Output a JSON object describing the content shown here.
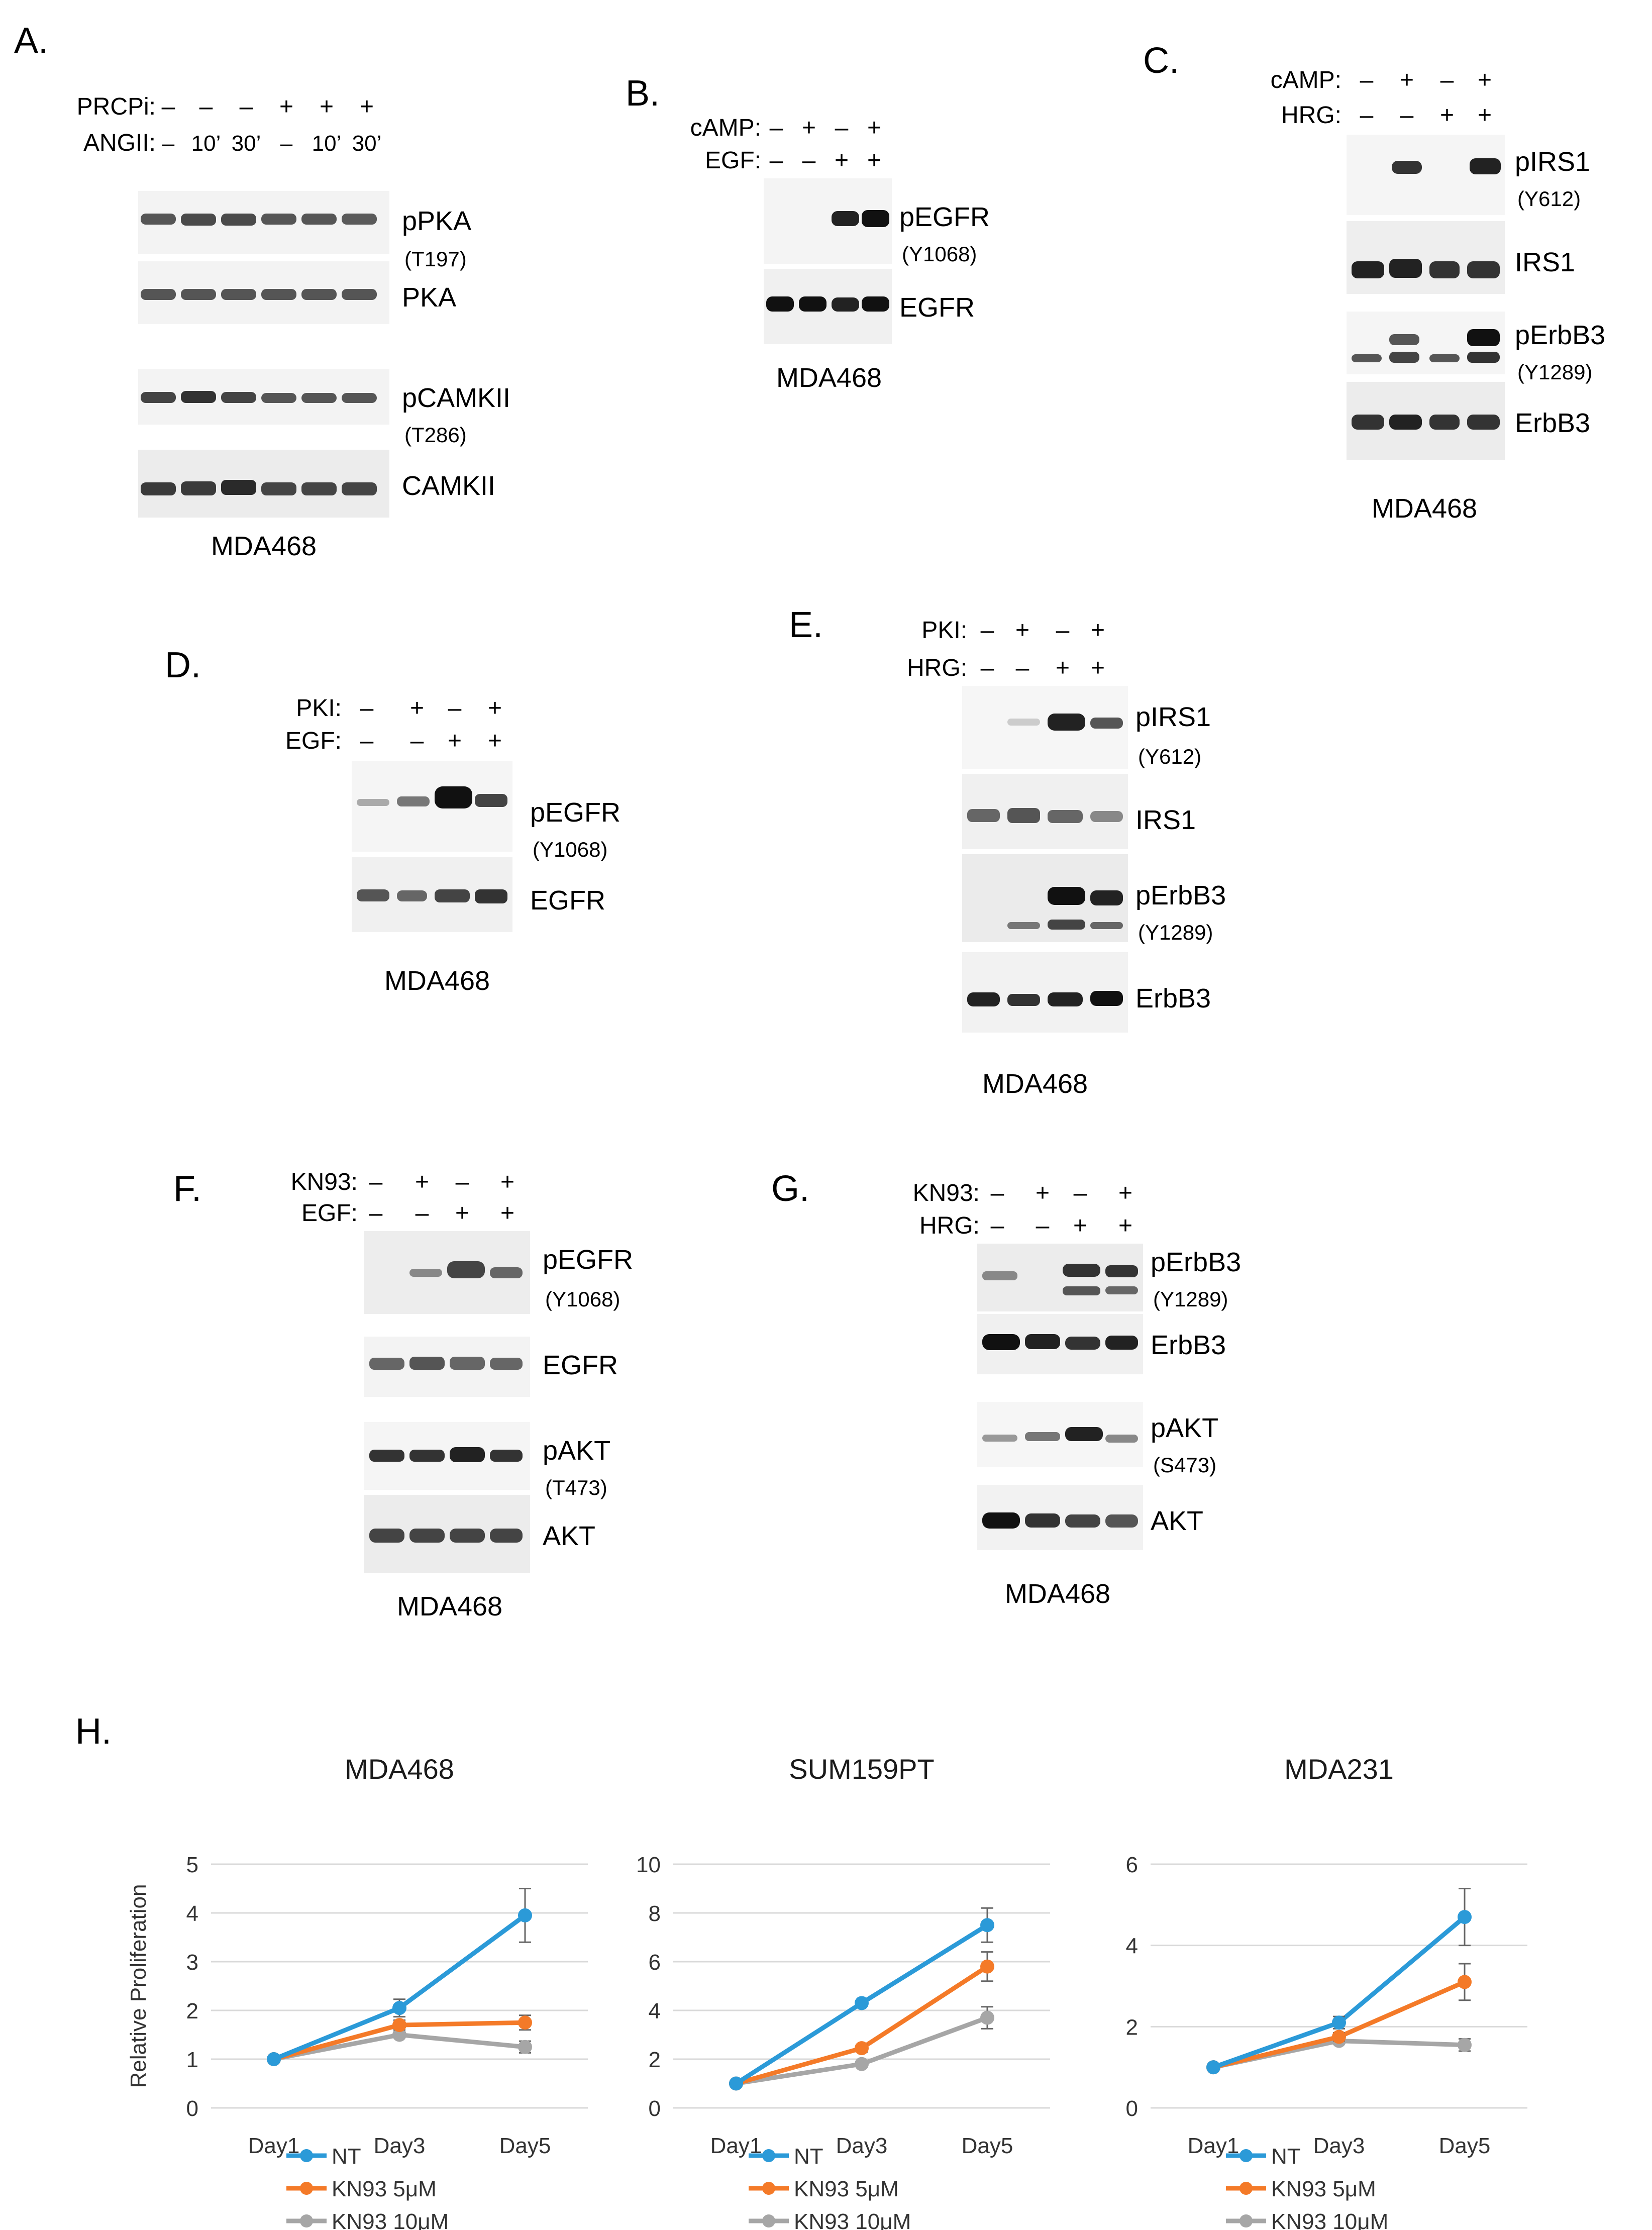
{
  "panel_letters": [
    "A.",
    "B.",
    "C.",
    "D.",
    "E.",
    "F.",
    "G.",
    "H."
  ],
  "panel_a": {
    "conditions": [
      {
        "label": "PRCPi:",
        "values": [
          "–",
          "–",
          "–",
          "+",
          "+",
          "+"
        ]
      },
      {
        "label": "ANGII:",
        "values": [
          "–",
          "10’",
          "30’",
          "–",
          "10’",
          "30’"
        ]
      }
    ],
    "blots": [
      {
        "label": "pPKA",
        "site": "(T197)"
      },
      {
        "label": "PKA",
        "site": ""
      },
      {
        "label": "pCAMKII",
        "site": "(T286)"
      },
      {
        "label": "CAMKII",
        "site": ""
      }
    ],
    "cell_line": "MDA468"
  },
  "panel_b": {
    "conditions": [
      {
        "label": "cAMP:",
        "values": [
          "–",
          "+",
          "–",
          "+"
        ]
      },
      {
        "label": "EGF:",
        "values": [
          "–",
          "–",
          "+",
          "+"
        ]
      }
    ],
    "blots": [
      {
        "label": "pEGFR",
        "site": "(Y1068)"
      },
      {
        "label": "EGFR",
        "site": ""
      }
    ],
    "cell_line": "MDA468"
  },
  "panel_c": {
    "conditions": [
      {
        "label": "cAMP:",
        "values": [
          "–",
          "+",
          "–",
          "+"
        ]
      },
      {
        "label": "HRG:",
        "values": [
          "–",
          "–",
          "+",
          "+"
        ]
      }
    ],
    "blots": [
      {
        "label": "pIRS1",
        "site": "(Y612)"
      },
      {
        "label": "IRS1",
        "site": ""
      },
      {
        "label": "pErbB3",
        "site": "(Y1289)"
      },
      {
        "label": "ErbB3",
        "site": ""
      }
    ],
    "cell_line": "MDA468"
  },
  "panel_d": {
    "conditions": [
      {
        "label": "PKI:",
        "values": [
          "–",
          "+",
          "–",
          "+"
        ]
      },
      {
        "label": "EGF:",
        "values": [
          "–",
          "–",
          "+",
          "+"
        ]
      }
    ],
    "blots": [
      {
        "label": "pEGFR",
        "site": "(Y1068)"
      },
      {
        "label": "EGFR",
        "site": ""
      }
    ],
    "cell_line": "MDA468"
  },
  "panel_e": {
    "conditions": [
      {
        "label": "PKI:",
        "values": [
          "–",
          "+",
          "–",
          "+"
        ]
      },
      {
        "label": "HRG:",
        "values": [
          "–",
          "–",
          "+",
          "+"
        ]
      }
    ],
    "blots": [
      {
        "label": "pIRS1",
        "site": "(Y612)"
      },
      {
        "label": "IRS1",
        "site": ""
      },
      {
        "label": "pErbB3",
        "site": "(Y1289)"
      },
      {
        "label": "ErbB3",
        "site": ""
      }
    ],
    "cell_line": "MDA468"
  },
  "panel_f": {
    "conditions": [
      {
        "label": "KN93:",
        "values": [
          "–",
          "+",
          "–",
          "+"
        ]
      },
      {
        "label": "EGF:",
        "values": [
          "–",
          "–",
          "+",
          "+"
        ]
      }
    ],
    "blots": [
      {
        "label": "pEGFR",
        "site": "(Y1068)"
      },
      {
        "label": "EGFR",
        "site": ""
      },
      {
        "label": "pAKT",
        "site": "(T473)"
      },
      {
        "label": "AKT",
        "site": ""
      }
    ],
    "cell_line": "MDA468"
  },
  "panel_g": {
    "conditions": [
      {
        "label": "KN93:",
        "values": [
          "–",
          "+",
          "–",
          "+"
        ]
      },
      {
        "label": "HRG:",
        "values": [
          "–",
          "–",
          "+",
          "+"
        ]
      }
    ],
    "blots": [
      {
        "label": "pErbB3",
        "site": "(Y1289)"
      },
      {
        "label": "ErbB3",
        "site": ""
      },
      {
        "label": "pAKT",
        "site": "(S473)"
      },
      {
        "label": "AKT",
        "site": ""
      }
    ],
    "cell_line": "MDA468"
  },
  "series_colors": {
    "NT": "#2b9ad8",
    "KN93 5μM": "#f47a28",
    "KN93 10μM": "#a6a6a6"
  },
  "chart_data": [
    {
      "type": "line",
      "title": "MDA468",
      "xlabel": "",
      "ylabel": "Relative Proliferation",
      "categories": [
        "Day1",
        "Day3",
        "Day5"
      ],
      "ylim": [
        0,
        5
      ],
      "yticks": [
        "0",
        "1",
        "2",
        "3",
        "4",
        "5"
      ],
      "grid": true,
      "legend": "bottom",
      "series": [
        {
          "name": "NT",
          "values": [
            1.0,
            2.05,
            3.95
          ],
          "errors": [
            0.0,
            0.18,
            0.55
          ]
        },
        {
          "name": "KN93 5μM",
          "values": [
            1.0,
            1.7,
            1.75
          ],
          "errors": [
            0.0,
            0.1,
            0.15
          ]
        },
        {
          "name": "KN93 10μM",
          "values": [
            1.0,
            1.5,
            1.25
          ],
          "errors": [
            0.0,
            0.05,
            0.12
          ]
        }
      ]
    },
    {
      "type": "line",
      "title": "SUM159PT",
      "xlabel": "",
      "ylabel": "",
      "categories": [
        "Day1",
        "Day3",
        "Day5"
      ],
      "ylim": [
        0,
        10
      ],
      "yticks": [
        "0",
        "2",
        "4",
        "6",
        "8",
        "10"
      ],
      "grid": true,
      "legend": "bottom",
      "series": [
        {
          "name": "NT",
          "values": [
            1.0,
            4.3,
            7.5
          ],
          "errors": [
            0.0,
            0.1,
            0.7
          ]
        },
        {
          "name": "KN93 5μM",
          "values": [
            1.0,
            2.45,
            5.8
          ],
          "errors": [
            0.0,
            0.15,
            0.6
          ]
        },
        {
          "name": "KN93 10μM",
          "values": [
            1.0,
            1.8,
            3.7
          ],
          "errors": [
            0.0,
            0.08,
            0.45
          ]
        }
      ]
    },
    {
      "type": "line",
      "title": "MDA231",
      "xlabel": "",
      "ylabel": "",
      "categories": [
        "Day1",
        "Day3",
        "Day5"
      ],
      "ylim": [
        0,
        6
      ],
      "yticks": [
        "0",
        "2",
        "4",
        "6"
      ],
      "grid": true,
      "legend": "bottom",
      "series": [
        {
          "name": "NT",
          "values": [
            1.0,
            2.1,
            4.7
          ],
          "errors": [
            0.0,
            0.15,
            0.7
          ]
        },
        {
          "name": "KN93 5μM",
          "values": [
            1.0,
            1.75,
            3.1
          ],
          "errors": [
            0.0,
            0.1,
            0.45
          ]
        },
        {
          "name": "KN93 10μM",
          "values": [
            1.0,
            1.65,
            1.55
          ],
          "errors": [
            0.0,
            0.05,
            0.15
          ]
        }
      ]
    }
  ]
}
